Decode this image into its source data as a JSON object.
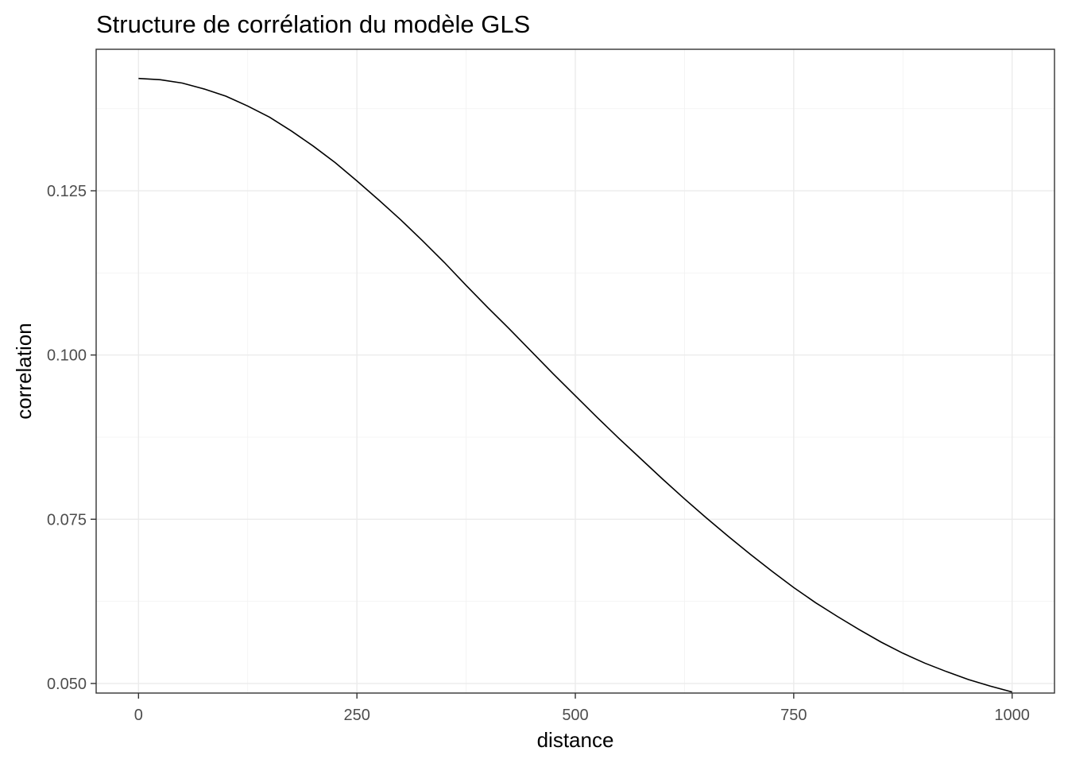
{
  "chart_data": {
    "type": "line",
    "title": "Structure de corrélation du modèle GLS",
    "xlabel": "distance",
    "ylabel": "correlation",
    "xlim": [
      -48.5,
      1048.5
    ],
    "ylim": [
      0.04854,
      0.14654
    ],
    "x_ticks": [
      0,
      250,
      500,
      750,
      1000
    ],
    "x_tick_labels": [
      "0",
      "250",
      "500",
      "750",
      "1000"
    ],
    "y_ticks": [
      0.05,
      0.075,
      0.1,
      0.125
    ],
    "y_tick_labels": [
      "0.050",
      "0.075",
      "0.100",
      "0.125"
    ],
    "grid": true,
    "legend": "none",
    "line_color": "#000000",
    "series": [
      {
        "x": [
          0,
          25,
          50,
          75,
          100,
          125,
          150,
          175,
          200,
          225,
          250,
          275,
          300,
          325,
          350,
          375,
          400,
          425,
          450,
          475,
          500,
          525,
          550,
          575,
          600,
          625,
          650,
          675,
          700,
          725,
          750,
          775,
          800,
          825,
          850,
          875,
          900,
          925,
          950,
          975,
          1000
        ],
        "values": [
          0.1421,
          0.1419,
          0.1414,
          0.1405,
          0.1394,
          0.1379,
          0.1362,
          0.1341,
          0.1318,
          0.1293,
          0.1265,
          0.1236,
          0.1206,
          0.1174,
          0.1141,
          0.1106,
          0.1072,
          0.1039,
          0.1005,
          0.0971,
          0.0938,
          0.0905,
          0.0873,
          0.0842,
          0.0811,
          0.0781,
          0.0752,
          0.0724,
          0.0697,
          0.0671,
          0.0646,
          0.0623,
          0.0602,
          0.0582,
          0.0563,
          0.0546,
          0.0531,
          0.0518,
          0.0506,
          0.0496,
          0.0487
        ]
      }
    ]
  }
}
